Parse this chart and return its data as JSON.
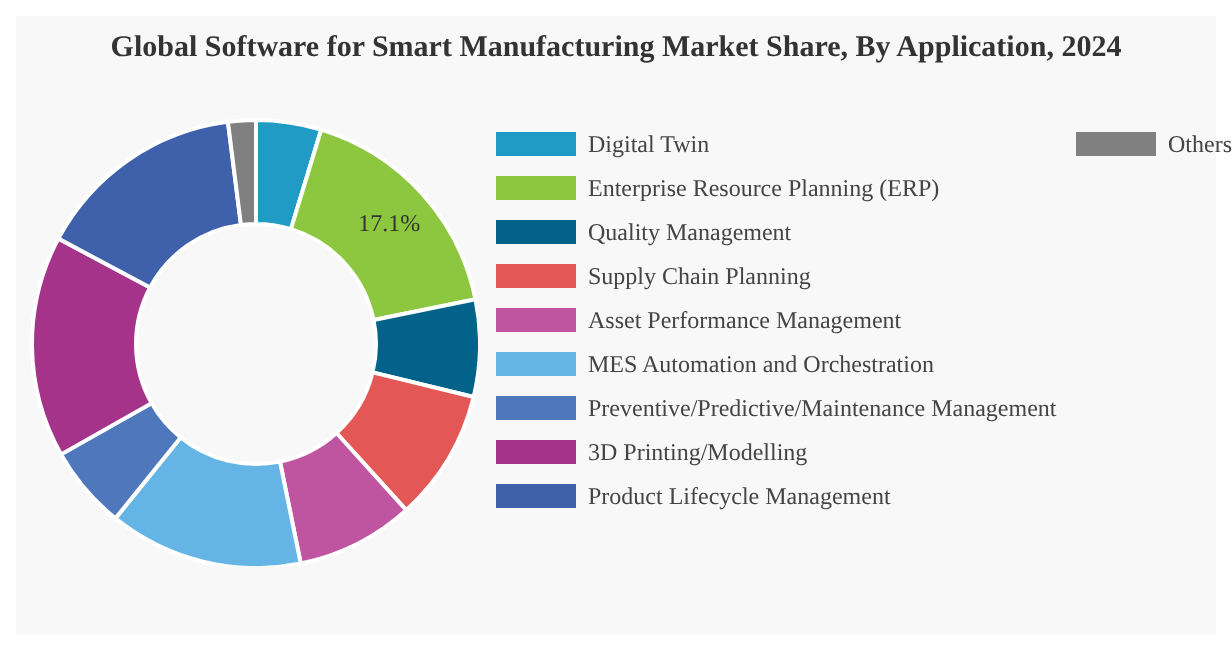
{
  "chart_data": {
    "type": "donut",
    "title": "Global Software for Smart Manufacturing Market Share, By Application, 2024",
    "categories": [
      "Digital Twin",
      "Enterprise Resource Planning (ERP)",
      "Quality Management",
      "Supply Chain Planning",
      "Asset Performance Management",
      "MES Automation and Orchestration",
      "Preventive/Predictive/Maintenance Management",
      "3D Printing/Modelling",
      "Product Lifecycle Management",
      "Others"
    ],
    "values": [
      4.7,
      17.1,
      7,
      9.5,
      8.5,
      14,
      6,
      16,
      15.2,
      2
    ],
    "colors": [
      "#1f9bc6",
      "#8dc63f",
      "#03628a",
      "#e35757",
      "#bf55a1",
      "#64b5e5",
      "#4f77bb",
      "#a43389",
      "#3f60ab",
      "#808080"
    ],
    "value_labels": [
      null,
      "17.1%",
      null,
      null,
      null,
      null,
      null,
      null,
      null,
      null
    ],
    "legend": "right"
  }
}
